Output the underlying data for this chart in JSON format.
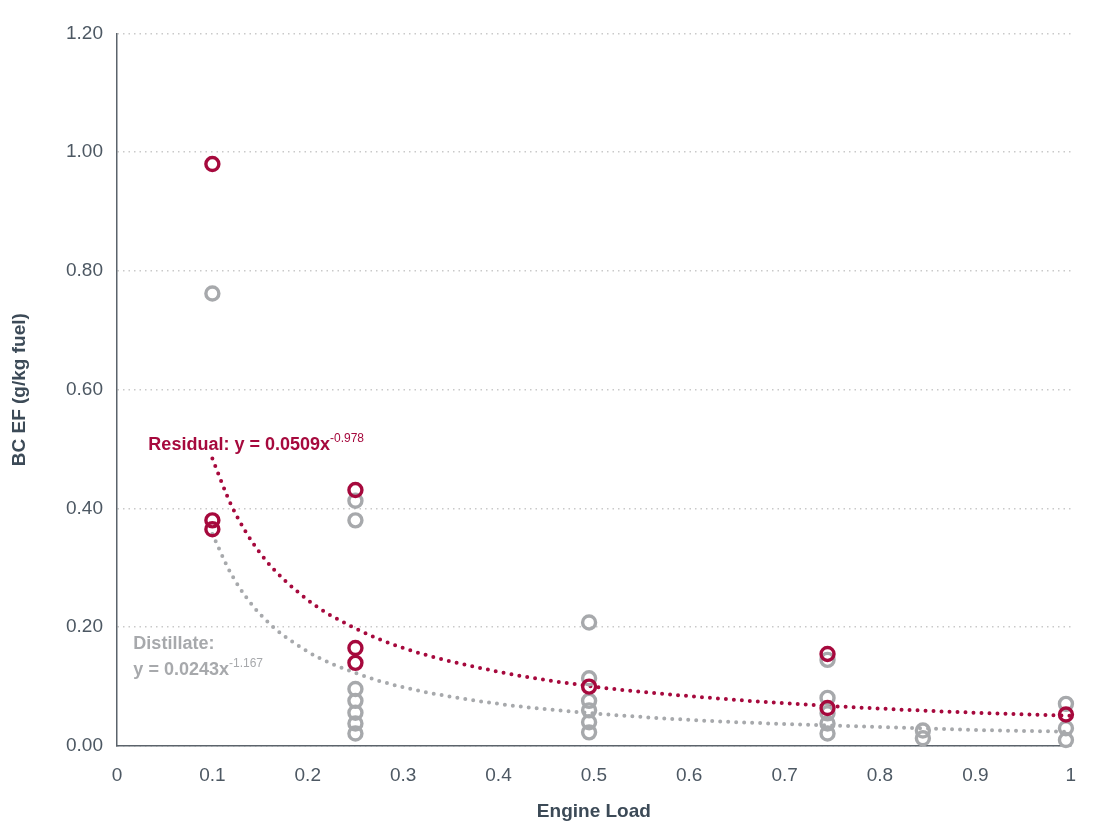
{
  "chart_data": {
    "type": "scatter",
    "xlabel": "Engine Load",
    "ylabel": "BC EF (g/kg fuel)",
    "xlim": [
      0,
      1
    ],
    "ylim": [
      0,
      1.2
    ],
    "xticks": [
      0,
      0.1,
      0.2,
      0.3,
      0.4,
      0.5,
      0.6,
      0.7,
      0.8,
      0.9,
      1
    ],
    "yticks": [
      {
        "value": 0,
        "label": "0.00"
      },
      {
        "value": 0.2,
        "label": "0.20"
      },
      {
        "value": 0.4,
        "label": "0.40"
      },
      {
        "value": 0.6,
        "label": "0.60"
      },
      {
        "value": 0.8,
        "label": "0.80"
      },
      {
        "value": 1,
        "label": "1.00"
      },
      {
        "value": 1.2,
        "label": "1.20"
      }
    ],
    "grid": "y",
    "marker": "circle",
    "series": [
      {
        "color": "#a6093d",
        "x": [
          0.1,
          0.1,
          0.1,
          0.25,
          0.25,
          0.25,
          0.495,
          0.745,
          0.745,
          0.995
        ],
        "values": [
          0.98,
          0.38,
          0.365,
          0.431,
          0.165,
          0.14,
          0.1,
          0.155,
          0.064,
          0.053
        ]
      },
      {
        "color": "#a7a9ac",
        "x": [
          0.1,
          0.25,
          0.25,
          0.25,
          0.25,
          0.25,
          0.25,
          0.25,
          0.495,
          0.495,
          0.495,
          0.495,
          0.495,
          0.495,
          0.745,
          0.745,
          0.745,
          0.745,
          0.745,
          0.845,
          0.845,
          0.995,
          0.995,
          0.995
        ],
        "values": [
          0.762,
          0.413,
          0.38,
          0.096,
          0.076,
          0.056,
          0.038,
          0.021,
          0.208,
          0.114,
          0.076,
          0.06,
          0.04,
          0.023,
          0.145,
          0.081,
          0.055,
          0.038,
          0.021,
          0.026,
          0.013,
          0.071,
          0.03,
          0.01
        ]
      },
      {
        "type": "line",
        "name": "Residual: y = 0.0509x$^{-0.978}$",
        "color": "#a6093d",
        "line_style": "dotted",
        "marker": "none",
        "x": [
          0.1,
          0.12,
          0.15,
          0.2,
          0.25,
          0.3,
          0.4,
          0.5,
          0.6,
          0.7,
          0.8,
          0.9,
          1
        ],
        "values": [
          0.484,
          0.405,
          0.325,
          0.246,
          0.198,
          0.165,
          0.125,
          0.1,
          0.084,
          0.072,
          0.063,
          0.056,
          0.051
        ]
      },
      {
        "type": "line",
        "name": "Distillate:\ny = 0.0243x$^{-1.167}$",
        "color": "#a7a9ac",
        "line_style": "dotted",
        "marker": "none",
        "x": [
          0.1,
          0.12,
          0.15,
          0.2,
          0.25,
          0.3,
          0.4,
          0.5,
          0.6,
          0.7,
          0.8,
          0.9,
          1
        ],
        "values": [
          0.357,
          0.289,
          0.222,
          0.159,
          0.123,
          0.099,
          0.071,
          0.055,
          0.044,
          0.037,
          0.032,
          0.027,
          0.024
        ]
      }
    ]
  }
}
